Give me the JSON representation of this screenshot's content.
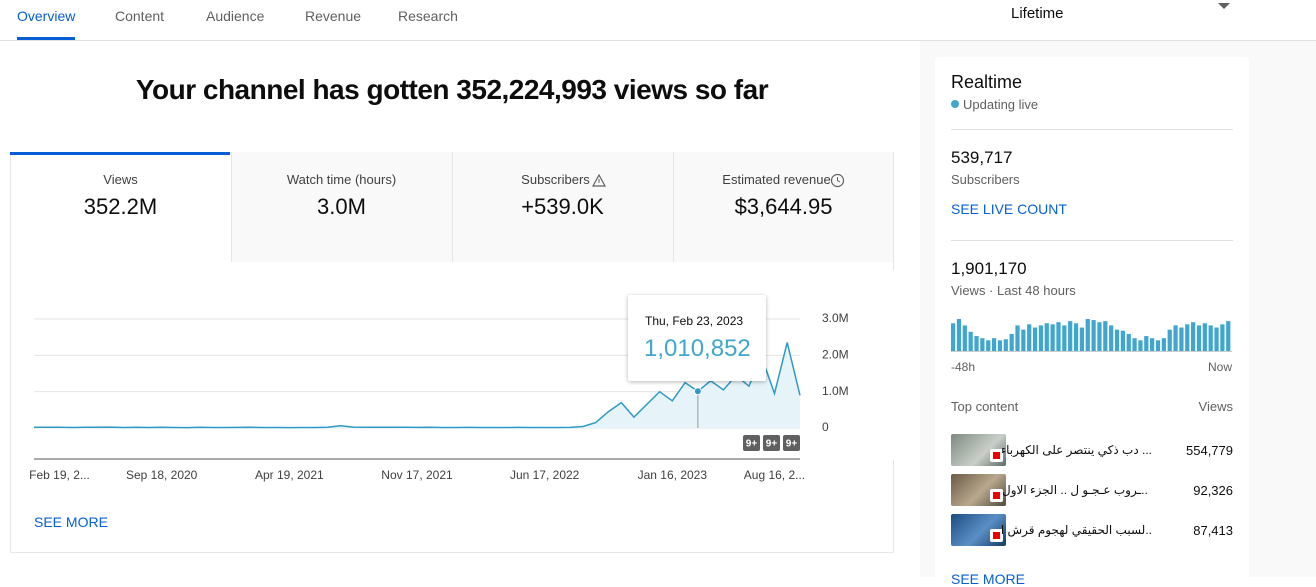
{
  "tabs": [
    "Overview",
    "Content",
    "Audience",
    "Revenue",
    "Research"
  ],
  "period": "Lifetime",
  "headline": "Your channel has gotten 352,224,993 views so far",
  "metrics": [
    {
      "label": "Views",
      "value": "352.2M"
    },
    {
      "label": "Watch time (hours)",
      "value": "3.0M"
    },
    {
      "label": "Subscribers",
      "value": "+539.0K"
    },
    {
      "label": "Estimated revenue",
      "value": "$3,644.95"
    }
  ],
  "see_more": "SEE MORE",
  "tooltip": {
    "date": "Thu, Feb 23, 2023",
    "value": "1,010,852"
  },
  "chart_data": [
    {
      "type": "line",
      "color": "#2e9ac7",
      "categories": [
        null,
        null,
        "Feb 19, 2...",
        null,
        null,
        null,
        null,
        null,
        null,
        null,
        "Sep 18, 2020",
        null,
        null,
        null,
        null,
        null,
        null,
        null,
        null,
        null,
        "Apr 19, 2021",
        null,
        null,
        null,
        null,
        null,
        null,
        null,
        null,
        null,
        "Nov 17, 2021",
        null,
        null,
        null,
        null,
        null,
        null,
        null,
        null,
        null,
        "Jun 17, 2022",
        null,
        null,
        null,
        null,
        null,
        null,
        null,
        null,
        null,
        "Jan 16, 2023",
        null,
        null,
        null,
        null,
        null,
        null,
        null,
        "Aug 16, 2...",
        null,
        null
      ],
      "values": [
        20000,
        22000,
        18000,
        15000,
        20000,
        22000,
        25000,
        15000,
        18000,
        14000,
        20000,
        15000,
        12000,
        18000,
        15000,
        14000,
        16000,
        18000,
        15000,
        14000,
        12000,
        15000,
        14000,
        20000,
        60000,
        25000,
        20000,
        22000,
        18000,
        20000,
        16000,
        18000,
        15000,
        14000,
        16000,
        14000,
        15000,
        14000,
        16000,
        15000,
        14000,
        15000,
        16000,
        40000,
        150000,
        450000,
        700000,
        300000,
        650000,
        1000000,
        750000,
        1250000,
        1010852,
        1300000,
        1050000,
        1450000,
        1150000,
        1950000,
        950000,
        2350000,
        900000
      ],
      "ylim": [
        0,
        3000000
      ],
      "yticks": [
        {
          "value": 0,
          "label": "0"
        },
        {
          "value": 1000000,
          "label": "1.0M"
        },
        {
          "value": 2000000,
          "label": "2.0M"
        },
        {
          "value": 3000000,
          "label": "3.0M"
        }
      ],
      "grid": true,
      "badges": [
        "9+",
        "9+",
        "9+"
      ]
    },
    {
      "type": "bar",
      "color": "#3ea6cf",
      "categories": [
        "-48h",
        null,
        null,
        null,
        null,
        null,
        null,
        null,
        null,
        null,
        null,
        null,
        null,
        null,
        null,
        null,
        null,
        null,
        null,
        null,
        null,
        null,
        null,
        null,
        null,
        null,
        null,
        null,
        null,
        null,
        null,
        null,
        null,
        null,
        null,
        null,
        null,
        null,
        null,
        null,
        null,
        null,
        null,
        null,
        null,
        null,
        null,
        "Now"
      ],
      "values": [
        26,
        30,
        24,
        18,
        14,
        12,
        10,
        12,
        10,
        11,
        16,
        24,
        20,
        25,
        22,
        24,
        26,
        25,
        27,
        24,
        28,
        26,
        22,
        30,
        29,
        27,
        28,
        24,
        20,
        19,
        16,
        12,
        10,
        14,
        12,
        10,
        12,
        20,
        24,
        22,
        25,
        27,
        24,
        26,
        24,
        22,
        25,
        28
      ],
      "ylim": [
        0,
        30
      ]
    }
  ],
  "realtime": {
    "title": "Realtime",
    "status": "Updating live",
    "subscribers": "539,717",
    "subscribers_label": "Subscribers",
    "live_count": "SEE LIVE COUNT",
    "views": "1,901,170",
    "views_label": "Views · Last 48 hours",
    "top_content": "Top content",
    "views_column": "Views",
    "items": [
      {
        "title": "... دب ذكي ينتصر على الكهرباء",
        "views": "554,779"
      },
      {
        "title": "..ـروب عـجـو ل .. الجزء الاول",
        "views": "92,326"
      },
      {
        "title": "..لسبب الحقيقي لهجوم قرش الغردقة",
        "views": "87,413"
      }
    ],
    "see_more": "SEE MORE"
  }
}
